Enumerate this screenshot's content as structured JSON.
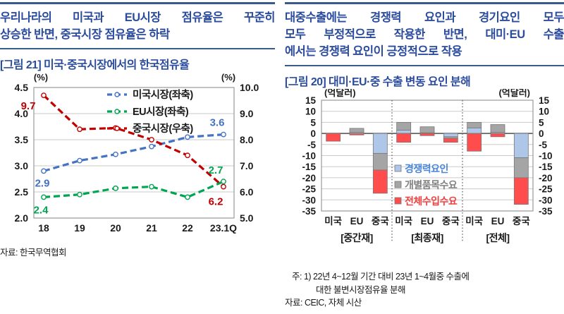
{
  "accent_navy": "#2B4C9E",
  "rule_navy": "#3A5A8C",
  "left_panel": {
    "header_lines": [
      "우리나라의 미국과 EU시장 점유율은 꾸준히",
      "상승한 반면, 중국시장 점유율은 하락"
    ],
    "figure_title": "[그림 21] 미국·중국시장에서의 한국점유율",
    "source": "자료: 한국무역협회"
  },
  "right_panel": {
    "header_lines": [
      "대중수출에는 경쟁력 요인과 경기요인 모두",
      "모두 부정적으로 작용한 반면, 대미·EU 수출",
      "에서는 경쟁력 요인이 긍정적으로 작용"
    ],
    "figure_title": "[그림 20] 대미·EU·중 수출 변동 요인 분해",
    "note_lines": [
      "주: 1) 22년 4~12월 기간 대비 23년 1~4월중 수출에",
      "대한 불변시장점유율 분해",
      "자료: CEIC, 자체 시산"
    ]
  },
  "chart_data": [
    {
      "type": "line",
      "title": "[그림 21] 미국·중국시장에서의 한국점유율",
      "x": [
        "18",
        "19",
        "20",
        "21",
        "22",
        "23.1Q"
      ],
      "left_axis": {
        "unit": "(%)",
        "min": 2.0,
        "max": 4.5,
        "step": 0.5,
        "ticks": [
          "4.5",
          "4.0",
          "3.5",
          "3.0",
          "2.5",
          "2.0"
        ]
      },
      "right_axis": {
        "unit": "(%)",
        "min": 5.0,
        "max": 10.0,
        "step": 1.0,
        "ticks": [
          "10.0",
          "9.0",
          "8.0",
          "7.0",
          "6.0",
          "5.0"
        ]
      },
      "grid": true,
      "legend_position": "top-center-inside",
      "series": [
        {
          "name": "미국시장(좌축)",
          "axis": "left",
          "color": "#4472C4",
          "values": [
            2.9,
            3.1,
            3.22,
            3.37,
            3.55,
            3.6
          ],
          "first_label": "2.9",
          "last_label": "3.6"
        },
        {
          "name": "EU시장(좌축)",
          "axis": "left",
          "color": "#00A551",
          "values": [
            2.4,
            2.45,
            2.57,
            2.6,
            2.4,
            2.7
          ],
          "first_label": "2.4",
          "last_label": "2.7"
        },
        {
          "name": "중국시장(우축)",
          "axis": "right",
          "color": "#C00000",
          "values": [
            9.7,
            8.4,
            8.45,
            8.0,
            7.4,
            6.2
          ],
          "first_label": "9.7",
          "last_label": "6.2"
        }
      ],
      "source": "자료: 한국무역협회"
    },
    {
      "type": "bar",
      "stacked": true,
      "title": "[그림 20] 대미·EU·중 수출 변동 요인 분해",
      "unit_left": "(억달러)",
      "unit_right": "(억달러)",
      "ylim": [
        -35,
        15
      ],
      "step": 5,
      "yticks": [
        "15",
        "10",
        "5",
        "0",
        "-5",
        "-10",
        "-15",
        "-20",
        "-25",
        "-30",
        "-35"
      ],
      "grid": true,
      "legend_position": "middle-inside",
      "groups": [
        {
          "label": "[중간재]",
          "categories": [
            "미국",
            "EU",
            "중국"
          ]
        },
        {
          "label": "[최종재]",
          "categories": [
            "미국",
            "EU",
            "중국"
          ]
        },
        {
          "label": "[전체]",
          "categories": [
            "미국",
            "EU",
            "중국"
          ]
        }
      ],
      "series": [
        {
          "name": "경쟁력요인",
          "color": "#AEC7E8",
          "text_color": "#4A86D8",
          "values": [
            0,
            0.5,
            -9,
            1.5,
            0.3,
            -1.5,
            2.5,
            0.5,
            -11
          ]
        },
        {
          "name": "개별품목수요",
          "color": "#A5A5A5",
          "text_color": "#808080",
          "values": [
            0,
            1.8,
            -7.5,
            3.5,
            2.7,
            -0.7,
            2.5,
            3.5,
            -9
          ]
        },
        {
          "name": "전체수입수요",
          "color": "#FF4D4D",
          "text_color": "#F04040",
          "values": [
            -3.5,
            -0.7,
            -10.5,
            -4,
            -1,
            -1.8,
            -8,
            -1.5,
            -12
          ]
        }
      ],
      "notes": [
        "주: 1) 22년 4~12월 기간 대비 23년 1~4월중 수출에",
        "대한 불변시장점유율 분해",
        "자료: CEIC, 자체 시산"
      ]
    }
  ]
}
